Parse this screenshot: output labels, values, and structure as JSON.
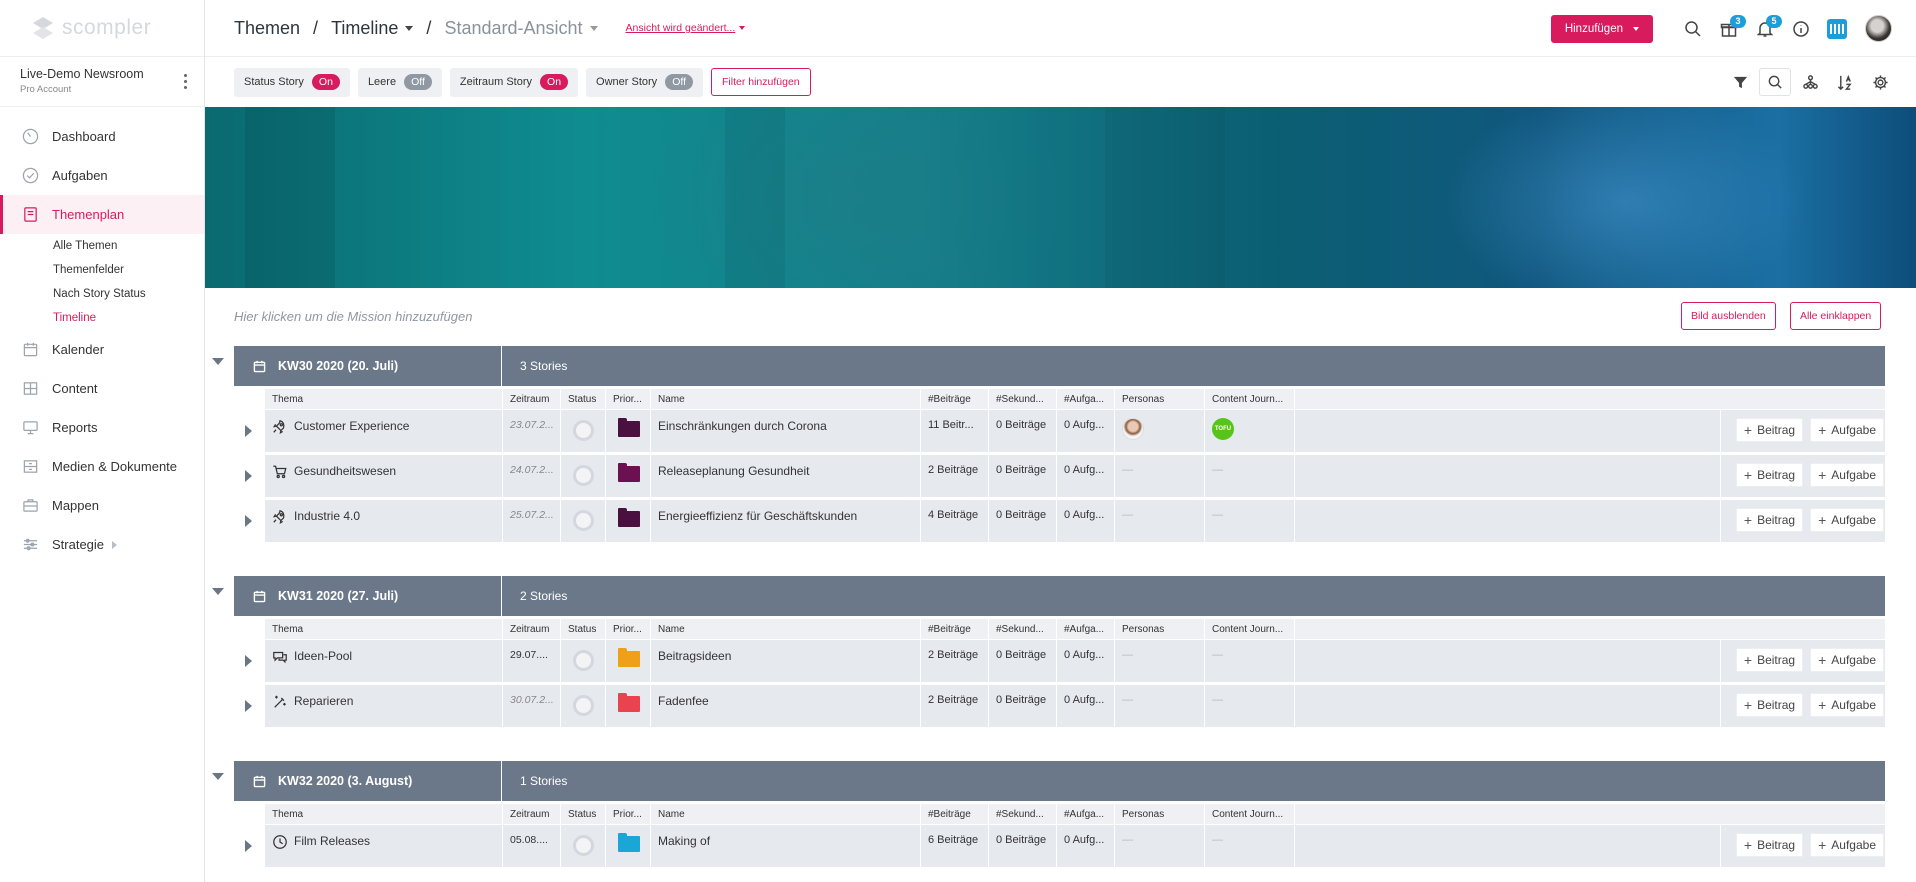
{
  "sidebar": {
    "logo_text": "scompler",
    "account_name": "Live-Demo Newsroom",
    "account_plan": "Pro Account",
    "nav": [
      {
        "label": "Dashboard",
        "icon": "gauge-icon"
      },
      {
        "label": "Aufgaben",
        "icon": "check-circle-icon"
      },
      {
        "label": "Themenplan",
        "icon": "book-icon",
        "active": true
      },
      {
        "label": "Kalender",
        "icon": "calendar-icon"
      },
      {
        "label": "Content",
        "icon": "grid-icon"
      },
      {
        "label": "Reports",
        "icon": "monitor-icon"
      },
      {
        "label": "Medien & Dokumente",
        "icon": "archive-icon"
      },
      {
        "label": "Mappen",
        "icon": "briefcase-icon"
      },
      {
        "label": "Strategie",
        "icon": "sliders-icon"
      }
    ],
    "subnav": [
      "Alle Themen",
      "Themenfelder",
      "Nach Story Status",
      "Timeline"
    ]
  },
  "header": {
    "crumb1": "Themen",
    "crumb2": "Timeline",
    "crumb3": "Standard-Ansicht",
    "view_changing": "Ansicht wird geändert...",
    "add_button": "Hinzufügen",
    "gift_badge": "3",
    "bell_badge": "5"
  },
  "filters": [
    {
      "label": "Status Story",
      "state": "On"
    },
    {
      "label": "Leere",
      "state": "Off"
    },
    {
      "label": "Zeitraum Story",
      "state": "On"
    },
    {
      "label": "Owner Story",
      "state": "Off"
    }
  ],
  "filter_add": "Filter hinzufügen",
  "mission_placeholder": "Hier klicken um die Mission hinzuzufügen",
  "hide_image_button": "Bild ausblenden",
  "collapse_all_button": "Alle einklappen",
  "columns": [
    "Thema",
    "Zeitraum",
    "Status",
    "Prior...",
    "Name",
    "#Beiträge",
    "#Sekund...",
    "#Aufga...",
    "Personas",
    "Content Journ..."
  ],
  "action_beitrag": "Beitrag",
  "action_aufgabe": "Aufgabe",
  "dash": "—",
  "groups": [
    {
      "title": "KW30 2020 (20. Juli)",
      "count": "3 Stories",
      "rows": [
        {
          "thema": "Customer Experience",
          "icon": "rocket-icon",
          "zeitraum": "23.07.2...",
          "prio_color": "#4a1040",
          "name": "Einschränkungen durch Corona",
          "beitraege": "11 Beitr...",
          "sekund": "0 Beiträge",
          "aufg": "0 Aufg...",
          "persona": true,
          "journey": "TOFU"
        },
        {
          "thema": "Gesundheitswesen",
          "icon": "cart-icon",
          "zeitraum": "24.07.2...",
          "prio_color": "#6b1152",
          "name": "Releaseplanung Gesundheit",
          "beitraege": "2 Beiträge",
          "sekund": "0 Beiträge",
          "aufg": "0 Aufg...",
          "persona": false,
          "journey": ""
        },
        {
          "thema": "Industrie 4.0",
          "icon": "rocket-icon",
          "zeitraum": "25.07.2...",
          "prio_color": "#4a1040",
          "name": "Energieeffizienz für Geschäftskunden",
          "beitraege": "4 Beiträge",
          "sekund": "0 Beiträge",
          "aufg": "0 Aufg...",
          "persona": false,
          "journey": ""
        }
      ]
    },
    {
      "title": "KW31 2020 (27. Juli)",
      "count": "2 Stories",
      "rows": [
        {
          "thema": "Ideen-Pool",
          "icon": "chat-icon",
          "zeitraum": "29.07....",
          "prio_color": "#f0a018",
          "name": "Beitragsideen",
          "beitraege": "2 Beiträge",
          "sekund": "0 Beiträge",
          "aufg": "0 Aufg...",
          "persona": false,
          "journey": ""
        },
        {
          "thema": "Reparieren",
          "icon": "magic-wand-icon",
          "zeitraum": "30.07.2...",
          "prio_color": "#e8434e",
          "name": "Fadenfee",
          "beitraege": "2 Beiträge",
          "sekund": "0 Beiträge",
          "aufg": "0 Aufg...",
          "persona": false,
          "journey": ""
        }
      ]
    },
    {
      "title": "KW32 2020 (3. August)",
      "count": "1 Stories",
      "rows": [
        {
          "thema": "Film Releases",
          "icon": "clock-icon",
          "zeitraum": "05.08....",
          "prio_color": "#1aa7d6",
          "name": "Making of",
          "beitraege": "6 Beiträge",
          "sekund": "0 Beiträge",
          "aufg": "0 Aufg...",
          "persona": false,
          "journey": ""
        }
      ]
    }
  ]
}
